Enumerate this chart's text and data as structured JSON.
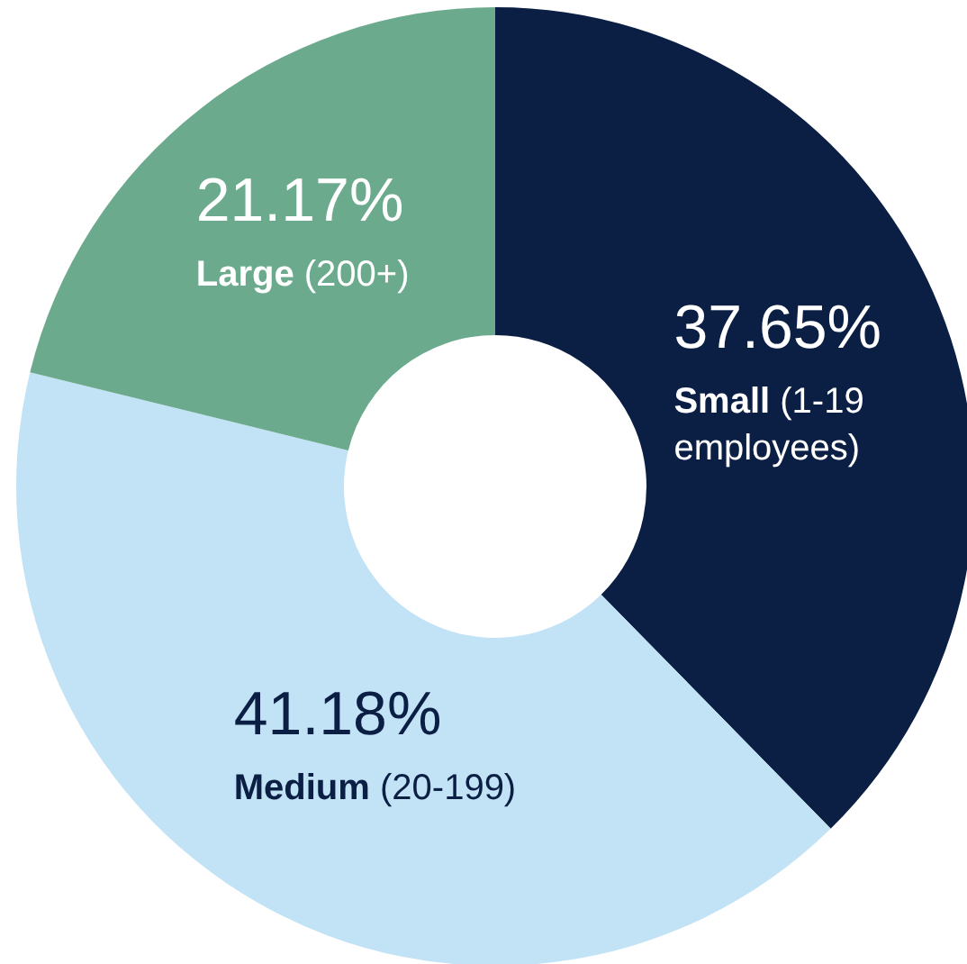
{
  "chart_data": {
    "type": "donut",
    "categories": [
      "Small (1-19 employees)",
      "Medium (20-199)",
      "Large (200+)"
    ],
    "values": [
      37.65,
      41.18,
      21.17
    ],
    "colors": [
      "#0b1f45",
      "#c2e3f5",
      "#6caa8e"
    ],
    "value_labels": [
      "37.65%",
      "41.18%",
      "21.17%"
    ]
  }
}
